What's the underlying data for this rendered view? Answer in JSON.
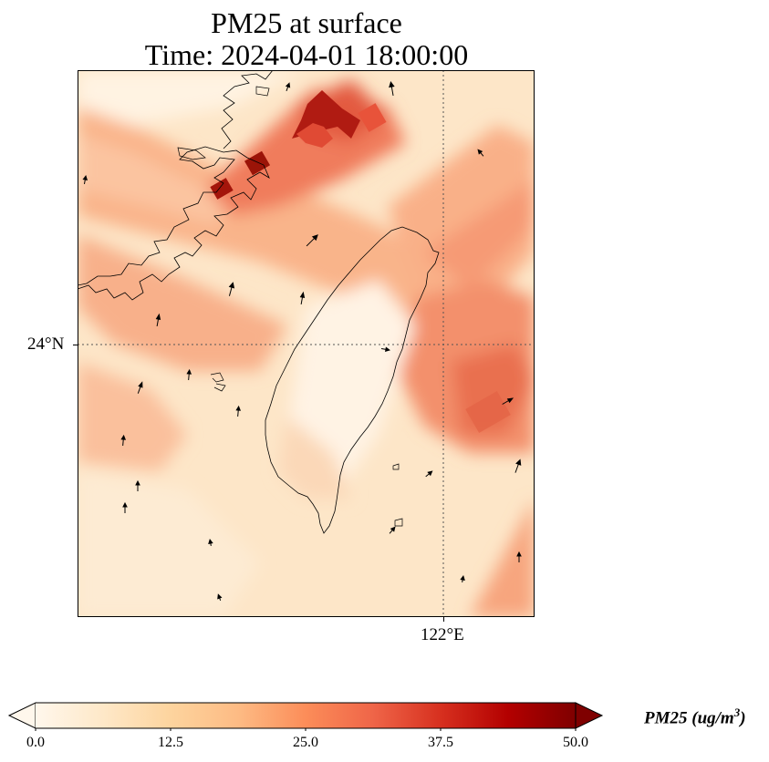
{
  "title": {
    "line1": "PM25 at surface",
    "line2": "Time: 2024-04-01 18:00:00"
  },
  "map": {
    "lat_label": "24°N",
    "lon_label": "122°E",
    "gridline_style": "dotted",
    "colormap": "OrRd",
    "features": [
      "taiwan-coastline",
      "china-coastline",
      "wind-arrows"
    ]
  },
  "colorbar": {
    "label": "PM25 (ug/m",
    "label_sup": "3",
    "label_close": ")",
    "ticks": [
      "0.0",
      "12.5",
      "25.0",
      "37.5",
      "50.0"
    ],
    "min": 0,
    "max": 50,
    "extend": "both",
    "colors": [
      "#fff7ec",
      "#fee8c8",
      "#fdd49e",
      "#fdbb84",
      "#fc8d59",
      "#ef6548",
      "#d7301f",
      "#b30000",
      "#7f0000"
    ]
  }
}
